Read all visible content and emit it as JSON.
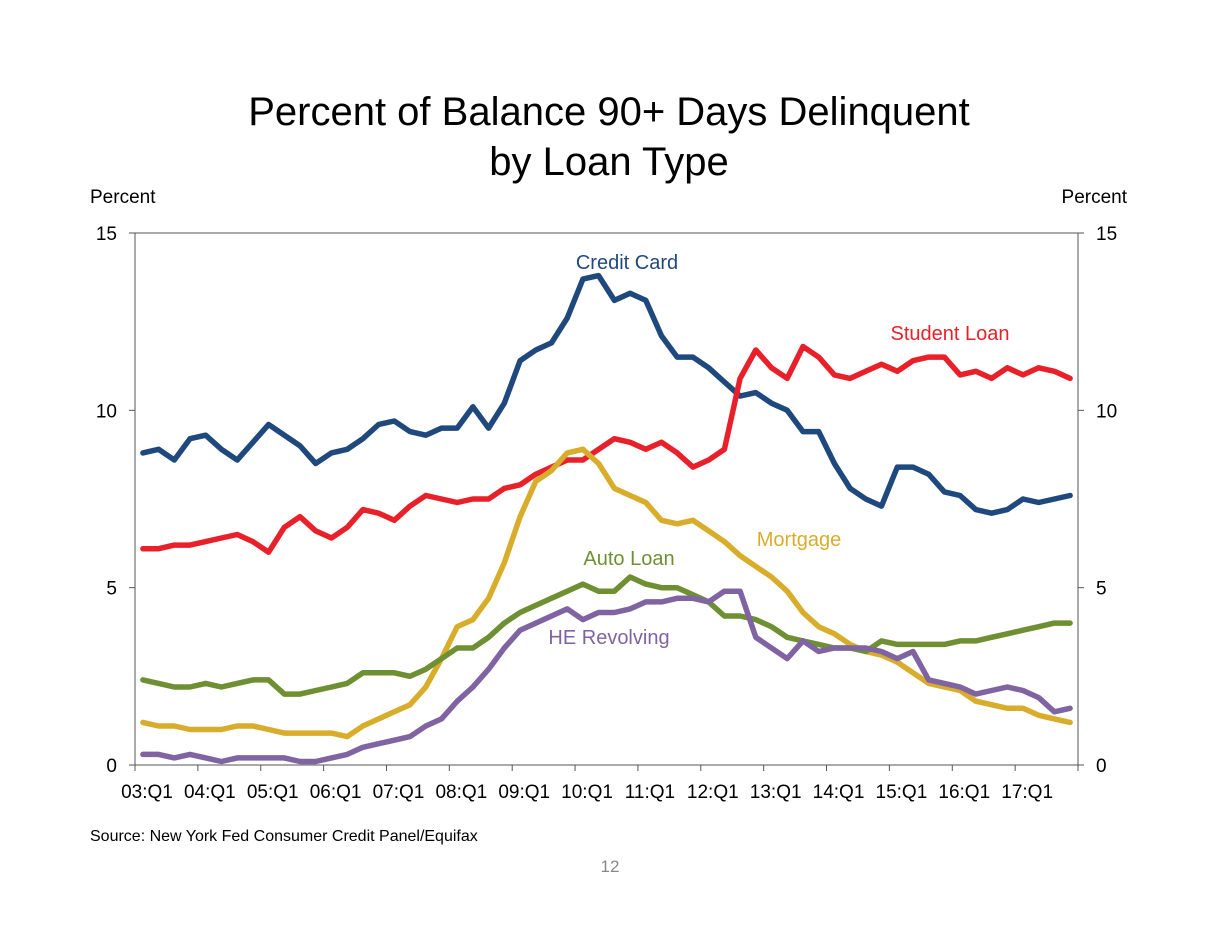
{
  "chart_data": {
    "type": "line",
    "title": [
      "Percent of Balance 90+ Days Delinquent",
      "by Loan Type"
    ],
    "ylabel_left": "Percent",
    "ylabel_right": "Percent",
    "ylim": [
      0,
      15
    ],
    "y_ticks": [
      "0",
      "5",
      "10",
      "15"
    ],
    "x_tick_labels": [
      "03:Q1",
      "04:Q1",
      "05:Q1",
      "06:Q1",
      "07:Q1",
      "08:Q1",
      "09:Q1",
      "10:Q1",
      "11:Q1",
      "12:Q1",
      "13:Q1",
      "14:Q1",
      "15:Q1",
      "16:Q1",
      "17:Q1"
    ],
    "x_start": "2003:Q1",
    "x_end": "2017:Q4",
    "grid": false,
    "legend": "inline labels",
    "source": "Source: New York Fed Consumer Credit Panel/Equifax",
    "series": [
      {
        "name": "Credit Card",
        "color": "#1f497d",
        "values": [
          8.8,
          8.9,
          8.6,
          9.2,
          9.3,
          8.9,
          8.6,
          9.1,
          9.6,
          9.3,
          9.0,
          8.5,
          8.8,
          8.9,
          9.2,
          9.6,
          9.7,
          9.4,
          9.3,
          9.5,
          9.5,
          10.1,
          9.5,
          10.2,
          11.4,
          11.7,
          11.9,
          12.6,
          13.7,
          13.8,
          13.1,
          13.3,
          13.1,
          12.1,
          11.5,
          11.5,
          11.2,
          10.8,
          10.4,
          10.5,
          10.2,
          10.0,
          9.4,
          9.4,
          8.5,
          7.8,
          7.5,
          7.3,
          8.4,
          8.4,
          8.2,
          7.7,
          7.6,
          7.2,
          7.1,
          7.2,
          7.5,
          7.4,
          7.5,
          7.6
        ]
      },
      {
        "name": "Student Loan",
        "color": "#e8202a",
        "values": [
          6.1,
          6.1,
          6.2,
          6.2,
          6.3,
          6.4,
          6.5,
          6.3,
          6.0,
          6.7,
          7.0,
          6.6,
          6.4,
          6.7,
          7.2,
          7.1,
          6.9,
          7.3,
          7.6,
          7.5,
          7.4,
          7.5,
          7.5,
          7.8,
          7.9,
          8.2,
          8.4,
          8.6,
          8.6,
          8.9,
          9.2,
          9.1,
          8.9,
          9.1,
          8.8,
          8.4,
          8.6,
          8.9,
          10.9,
          11.7,
          11.2,
          10.9,
          11.8,
          11.5,
          11.0,
          10.9,
          11.1,
          11.3,
          11.1,
          11.4,
          11.5,
          11.5,
          11.0,
          11.1,
          10.9,
          11.2,
          11.0,
          11.2,
          11.1,
          10.9
        ]
      },
      {
        "name": "Mortgage",
        "color": "#d9ad2c",
        "values": [
          1.2,
          1.1,
          1.1,
          1.0,
          1.0,
          1.0,
          1.1,
          1.1,
          1.0,
          0.9,
          0.9,
          0.9,
          0.9,
          0.8,
          1.1,
          1.3,
          1.5,
          1.7,
          2.2,
          3.0,
          3.9,
          4.1,
          4.7,
          5.7,
          7.0,
          8.0,
          8.3,
          8.8,
          8.9,
          8.5,
          7.8,
          7.6,
          7.4,
          6.9,
          6.8,
          6.9,
          6.6,
          6.3,
          5.9,
          5.6,
          5.3,
          4.9,
          4.3,
          3.9,
          3.7,
          3.4,
          3.2,
          3.1,
          2.9,
          2.6,
          2.3,
          2.2,
          2.1,
          1.8,
          1.7,
          1.6,
          1.6,
          1.4,
          1.3,
          1.2
        ]
      },
      {
        "name": "Auto Loan",
        "color": "#6f8f33",
        "values": [
          2.4,
          2.3,
          2.2,
          2.2,
          2.3,
          2.2,
          2.3,
          2.4,
          2.4,
          2.0,
          2.0,
          2.1,
          2.2,
          2.3,
          2.6,
          2.6,
          2.6,
          2.5,
          2.7,
          3.0,
          3.3,
          3.3,
          3.6,
          4.0,
          4.3,
          4.5,
          4.7,
          4.9,
          5.1,
          4.9,
          4.9,
          5.3,
          5.1,
          5.0,
          5.0,
          4.8,
          4.6,
          4.2,
          4.2,
          4.1,
          3.9,
          3.6,
          3.5,
          3.4,
          3.3,
          3.3,
          3.2,
          3.5,
          3.4,
          3.4,
          3.4,
          3.4,
          3.5,
          3.5,
          3.6,
          3.7,
          3.8,
          3.9,
          4.0,
          4.0
        ]
      },
      {
        "name": "HE Revolving",
        "color": "#8064a2",
        "values": [
          0.3,
          0.3,
          0.2,
          0.3,
          0.2,
          0.1,
          0.2,
          0.2,
          0.2,
          0.2,
          0.1,
          0.1,
          0.2,
          0.3,
          0.5,
          0.6,
          0.7,
          0.8,
          1.1,
          1.3,
          1.8,
          2.2,
          2.7,
          3.3,
          3.8,
          4.0,
          4.2,
          4.4,
          4.1,
          4.3,
          4.3,
          4.4,
          4.6,
          4.6,
          4.7,
          4.7,
          4.6,
          4.9,
          4.9,
          3.6,
          3.3,
          3.0,
          3.5,
          3.2,
          3.3,
          3.3,
          3.3,
          3.2,
          3.0,
          3.2,
          2.4,
          2.3,
          2.2,
          2.0,
          2.1,
          2.2,
          2.1,
          1.9,
          1.5,
          1.6
        ]
      }
    ]
  },
  "series_labels": [
    "Credit Card",
    "Student Loan",
    "Mortgage",
    "Auto Loan",
    "HE Revolving"
  ],
  "page_number": "12"
}
